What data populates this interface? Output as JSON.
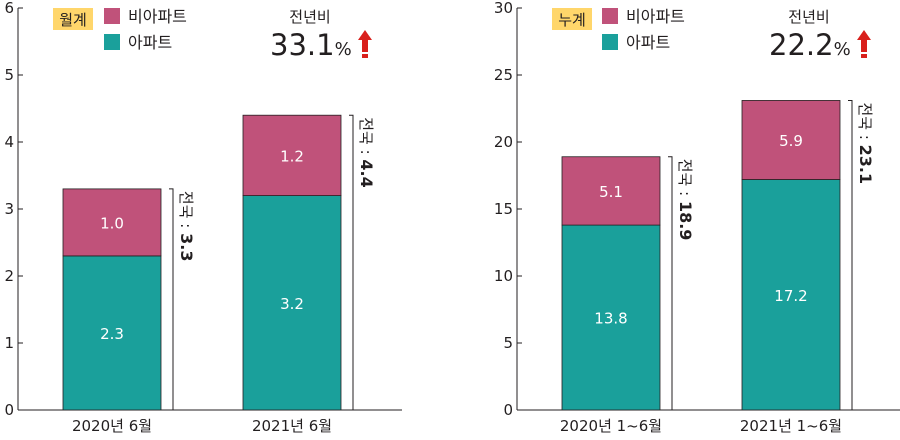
{
  "colors": {
    "apartment": "#1aa09b",
    "non_apartment": "#c0527a",
    "badge": "#ffd66b",
    "arrow": "#d9201c",
    "axis": "#231f20"
  },
  "legend": {
    "non_apartment": "비아파트",
    "apartment": "아파트"
  },
  "chart_data": [
    {
      "type": "bar",
      "stacked": true,
      "badge": "월계",
      "yoy_label": "전년비",
      "yoy_value": "33.1",
      "yoy_unit": "%",
      "categories": [
        "2020년 6월",
        "2021년 6월"
      ],
      "series": [
        {
          "name": "아파트",
          "key": "apartment",
          "values": [
            2.3,
            3.2
          ],
          "labels": [
            "2.3",
            "3.2"
          ]
        },
        {
          "name": "비아파트",
          "key": "non_apartment",
          "values": [
            1.0,
            1.2
          ],
          "labels": [
            "1.0",
            "1.2"
          ]
        }
      ],
      "totals_prefix": "전국 : ",
      "totals": [
        3.3,
        4.4
      ],
      "totals_labels": [
        "3.3",
        "4.4"
      ],
      "yticks": [
        0,
        1,
        2,
        3,
        4,
        5,
        6
      ],
      "ytick_labels": [
        "0",
        "1",
        "2",
        "3",
        "4",
        "5",
        "6"
      ],
      "ylim": [
        0,
        6
      ],
      "grid": false
    },
    {
      "type": "bar",
      "stacked": true,
      "badge": "누계",
      "yoy_label": "전년비",
      "yoy_value": "22.2",
      "yoy_unit": "%",
      "categories": [
        "2020년 1~6월",
        "2021년 1~6월"
      ],
      "series": [
        {
          "name": "아파트",
          "key": "apartment",
          "values": [
            13.8,
            17.2
          ],
          "labels": [
            "13.8",
            "17.2"
          ]
        },
        {
          "name": "비아파트",
          "key": "non_apartment",
          "values": [
            5.1,
            5.9
          ],
          "labels": [
            "5.1",
            "5.9"
          ]
        }
      ],
      "totals_prefix": "전국 : ",
      "totals": [
        18.9,
        23.1
      ],
      "totals_labels": [
        "18.9",
        "23.1"
      ],
      "yticks": [
        0,
        5,
        10,
        15,
        20,
        25,
        30
      ],
      "ytick_labels": [
        "0",
        "5",
        "10",
        "15",
        "20",
        "25",
        "30"
      ],
      "ylim": [
        0,
        30
      ],
      "grid": false
    }
  ]
}
